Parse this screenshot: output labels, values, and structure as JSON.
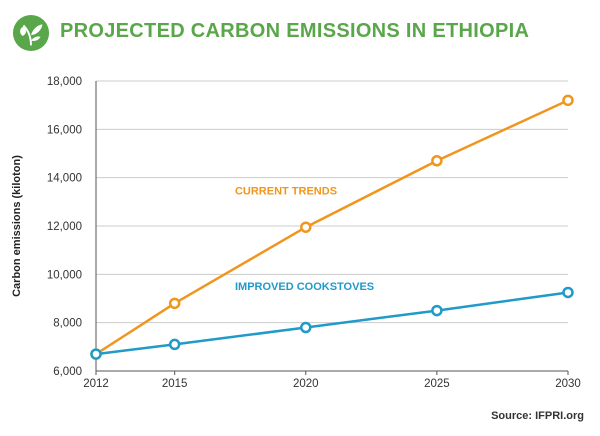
{
  "header": {
    "title": "PROJECTED CARBON EMISSIONS IN ETHIOPIA",
    "logo_icon": "leaf-logo-icon"
  },
  "colors": {
    "title": "#5aa64a",
    "logo": "#5aa64a",
    "current_trends": "#f0961e",
    "improved_cookstoves": "#1f9ac9",
    "axis": "#555555",
    "gridline": "#cccccc"
  },
  "source": "Source: IFPRI.org",
  "chart_data": {
    "type": "line",
    "x": [
      2012,
      2015,
      2020,
      2025,
      2030
    ],
    "x_tick_labels": [
      "2012",
      "2015",
      "2020",
      "2025",
      "2030"
    ],
    "y_tick_values": [
      6000,
      8000,
      10000,
      12000,
      14000,
      16000,
      18000
    ],
    "y_tick_labels": [
      "6,000",
      "8,000",
      "10,000",
      "12,000",
      "14,000",
      "16,000",
      "18,000"
    ],
    "xlim": [
      2012,
      2030
    ],
    "ylim": [
      6000,
      18000
    ],
    "ylabel": "Carbon emissions (kiloton)",
    "xlabel": "",
    "grid": "horizontal",
    "series": [
      {
        "name": "CURRENT TRENDS",
        "color": "#f0961e",
        "values": [
          6700,
          8800,
          11950,
          14700,
          17200
        ]
      },
      {
        "name": "IMPROVED COOKSTOVES",
        "color": "#1f9ac9",
        "values": [
          6700,
          7100,
          7800,
          8500,
          9250
        ]
      }
    ]
  }
}
